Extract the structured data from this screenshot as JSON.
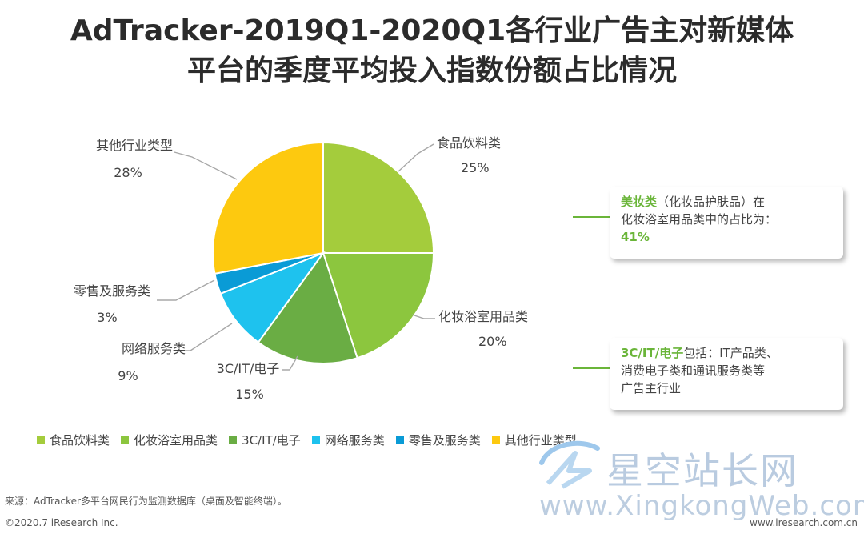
{
  "title_line1": "AdTracker-2019Q1-2020Q1各行业广告主对新媒体",
  "title_line2": "平台的季度平均投入指数份额占比情况",
  "chart_data": {
    "type": "pie",
    "start_angle_deg": 0,
    "direction": "clockwise",
    "slices": [
      {
        "label": "食品饮料类",
        "value": 25,
        "value_label": "25%",
        "color": "#a4cc3c"
      },
      {
        "label": "化妆浴室用品类",
        "value": 20,
        "value_label": "20%",
        "color": "#8cc63e"
      },
      {
        "label": "3C/IT/电子",
        "value": 15,
        "value_label": "15%",
        "color": "#6aad44"
      },
      {
        "label": "网络服务类",
        "value": 9,
        "value_label": "9%",
        "color": "#1ec2ee"
      },
      {
        "label": "零售及服务类",
        "value": 3,
        "value_label": "3%",
        "color": "#0a9bd6"
      },
      {
        "label": "其他行业类型",
        "value": 28,
        "value_label": "28%",
        "color": "#fdc90f"
      }
    ],
    "legend_position": "bottom"
  },
  "notes": [
    {
      "highlight": "美妆类",
      "text1": "（化妆品护肤品）在",
      "text2": "化妆浴室用品类中的占比为：",
      "highlight2": "41%"
    },
    {
      "highlight": "3C/IT/电子",
      "text1": "包括：IT产品类、",
      "text2": "消费电子类和通讯服务类等",
      "text3": "广告主行业"
    }
  ],
  "footer": {
    "source": "来源：AdTracker多平台网民行为监测数据库（桌面及智能终端）。",
    "copyright": "©2020.7 iResearch Inc.",
    "site": "www.iresearch.com.cn"
  },
  "watermark": {
    "cn": "星空站长网",
    "en": "www.XingkongWeb.com"
  }
}
